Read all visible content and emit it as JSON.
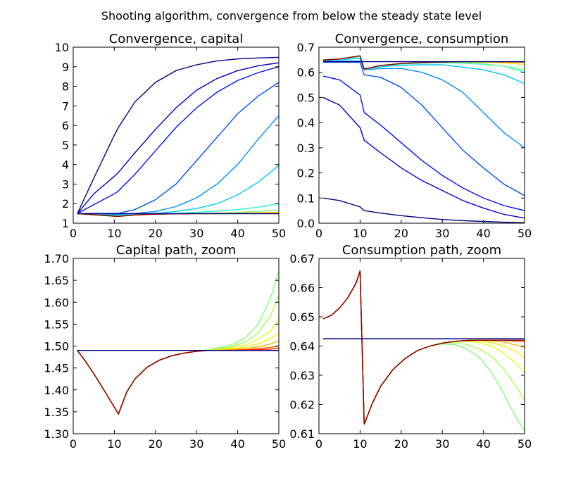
{
  "figure": {
    "suptitle": "Shooting algorithm, convergence from below the steady state level"
  },
  "chart_data": [
    {
      "id": "capital",
      "type": "line",
      "title": "Convergence, capital",
      "xlim": [
        0,
        50
      ],
      "ylim": [
        1,
        10
      ],
      "xticks": [
        0,
        10,
        20,
        30,
        40,
        50
      ],
      "yticks": [
        1,
        2,
        3,
        4,
        5,
        6,
        7,
        8,
        9,
        10
      ],
      "ytick_decimals": 0,
      "grid": false,
      "x": [
        1,
        5,
        10,
        11,
        15,
        20,
        25,
        30,
        35,
        40,
        45,
        50
      ],
      "series": [
        {
          "color": "#00007f",
          "values": [
            1.49,
            3.3,
            5.5,
            5.9,
            7.2,
            8.2,
            8.8,
            9.1,
            9.3,
            9.4,
            9.45,
            9.48
          ]
        },
        {
          "color": "#0000c8",
          "values": [
            1.49,
            2.5,
            3.4,
            3.6,
            4.6,
            5.8,
            6.9,
            7.8,
            8.4,
            8.8,
            9.05,
            9.2
          ]
        },
        {
          "color": "#0010ff",
          "values": [
            1.49,
            1.95,
            2.5,
            2.65,
            3.5,
            4.7,
            5.9,
            6.9,
            7.7,
            8.3,
            8.7,
            9.0
          ]
        },
        {
          "color": "#0050ff",
          "values": [
            1.49,
            1.5,
            1.5,
            1.5,
            1.7,
            2.2,
            3.0,
            4.2,
            5.4,
            6.6,
            7.5,
            8.2
          ]
        },
        {
          "color": "#0090ff",
          "values": [
            1.49,
            1.47,
            1.45,
            1.45,
            1.5,
            1.6,
            1.85,
            2.3,
            3.0,
            4.0,
            5.3,
            6.5
          ]
        },
        {
          "color": "#00c8ff",
          "values": [
            1.49,
            1.45,
            1.4,
            1.4,
            1.45,
            1.5,
            1.6,
            1.75,
            2.0,
            2.45,
            3.1,
            3.95
          ]
        },
        {
          "color": "#20ffd8",
          "values": [
            1.49,
            1.44,
            1.37,
            1.37,
            1.42,
            1.47,
            1.5,
            1.56,
            1.62,
            1.7,
            1.82,
            2.0
          ]
        },
        {
          "color": "#7dff7a",
          "values": [
            1.49,
            1.43,
            1.36,
            1.35,
            1.42,
            1.46,
            1.48,
            1.5,
            1.52,
            1.55,
            1.6,
            1.67
          ]
        },
        {
          "color": "#ffe600",
          "values": [
            1.49,
            1.43,
            1.36,
            1.35,
            1.42,
            1.46,
            1.48,
            1.49,
            1.5,
            1.51,
            1.53,
            1.55
          ]
        },
        {
          "color": "#ff6800",
          "values": [
            1.49,
            1.43,
            1.36,
            1.35,
            1.42,
            1.46,
            1.48,
            1.49,
            1.49,
            1.5,
            1.5,
            1.51
          ]
        },
        {
          "color": "#7f0000",
          "values": [
            1.49,
            1.43,
            1.36,
            1.35,
            1.42,
            1.46,
            1.48,
            1.49,
            1.49,
            1.49,
            1.49,
            1.49
          ]
        },
        {
          "color": "#00007f",
          "values": [
            1.49,
            1.49,
            1.49,
            1.49,
            1.49,
            1.49,
            1.49,
            1.49,
            1.49,
            1.49,
            1.49,
            1.49
          ]
        }
      ]
    },
    {
      "id": "consumption",
      "type": "line",
      "title": "Convergence, consumption",
      "xlim": [
        0,
        50
      ],
      "ylim": [
        0,
        0.7
      ],
      "xticks": [
        0,
        10,
        20,
        30,
        40,
        50
      ],
      "yticks": [
        0.0,
        0.1,
        0.2,
        0.3,
        0.4,
        0.5,
        0.6,
        0.7
      ],
      "ytick_decimals": 1,
      "grid": false,
      "x": [
        1,
        5,
        10,
        11,
        15,
        20,
        25,
        30,
        35,
        40,
        45,
        50
      ],
      "series": [
        {
          "color": "#00007f",
          "values": [
            0.1,
            0.09,
            0.065,
            0.05,
            0.04,
            0.03,
            0.022,
            0.015,
            0.01,
            0.007,
            0.004,
            0.002
          ]
        },
        {
          "color": "#0000c8",
          "values": [
            0.5,
            0.47,
            0.38,
            0.33,
            0.28,
            0.22,
            0.17,
            0.13,
            0.09,
            0.06,
            0.035,
            0.02
          ]
        },
        {
          "color": "#0010ff",
          "values": [
            0.585,
            0.57,
            0.51,
            0.44,
            0.39,
            0.32,
            0.25,
            0.19,
            0.14,
            0.1,
            0.07,
            0.05
          ]
        },
        {
          "color": "#0050ff",
          "values": [
            0.64,
            0.64,
            0.64,
            0.59,
            0.58,
            0.54,
            0.47,
            0.38,
            0.29,
            0.22,
            0.155,
            0.11
          ]
        },
        {
          "color": "#0090ff",
          "values": [
            0.645,
            0.645,
            0.645,
            0.61,
            0.615,
            0.615,
            0.6,
            0.57,
            0.52,
            0.44,
            0.36,
            0.3
          ]
        },
        {
          "color": "#00c8ff",
          "values": [
            0.648,
            0.65,
            0.655,
            0.612,
            0.622,
            0.628,
            0.63,
            0.63,
            0.62,
            0.61,
            0.59,
            0.555
          ]
        },
        {
          "color": "#20ffd8",
          "values": [
            0.649,
            0.652,
            0.662,
            0.613,
            0.625,
            0.633,
            0.637,
            0.638,
            0.636,
            0.632,
            0.625,
            0.6
          ]
        },
        {
          "color": "#7dff7a",
          "values": [
            0.649,
            0.653,
            0.665,
            0.613,
            0.627,
            0.635,
            0.639,
            0.64,
            0.638,
            0.634,
            0.625,
            0.61
          ]
        },
        {
          "color": "#ffe600",
          "values": [
            0.649,
            0.653,
            0.665,
            0.613,
            0.627,
            0.635,
            0.639,
            0.641,
            0.641,
            0.64,
            0.637,
            0.632
          ]
        },
        {
          "color": "#ff6800",
          "values": [
            0.649,
            0.653,
            0.665,
            0.613,
            0.627,
            0.635,
            0.639,
            0.641,
            0.642,
            0.642,
            0.641,
            0.64
          ]
        },
        {
          "color": "#7f0000",
          "values": [
            0.649,
            0.653,
            0.666,
            0.613,
            0.627,
            0.635,
            0.639,
            0.641,
            0.642,
            0.642,
            0.642,
            0.642
          ]
        },
        {
          "color": "#00007f",
          "values": [
            0.6425,
            0.6425,
            0.6425,
            0.6425,
            0.6425,
            0.6425,
            0.6425,
            0.6425,
            0.6425,
            0.6425,
            0.6425,
            0.6425
          ]
        }
      ]
    },
    {
      "id": "capital-zoom",
      "type": "line",
      "title": "Capital path, zoom",
      "xlim": [
        0,
        50
      ],
      "ylim": [
        1.3,
        1.7
      ],
      "xticks": [
        0,
        10,
        20,
        30,
        40,
        50
      ],
      "yticks": [
        1.3,
        1.35,
        1.4,
        1.45,
        1.5,
        1.55,
        1.6,
        1.65,
        1.7
      ],
      "ytick_decimals": 2,
      "grid": false,
      "x": [
        1,
        3,
        5,
        7,
        9,
        11,
        13,
        15,
        18,
        21,
        24,
        27,
        30,
        33,
        36,
        39,
        42,
        45,
        48,
        50
      ],
      "series": [
        {
          "color": "#7dff7a",
          "values": [
            1.49,
            1.465,
            1.437,
            1.407,
            1.376,
            1.345,
            1.395,
            1.425,
            1.452,
            1.468,
            1.478,
            1.484,
            1.488,
            1.492,
            1.497,
            1.505,
            1.52,
            1.55,
            1.61,
            1.67
          ]
        },
        {
          "color": "#a6ff51",
          "values": [
            1.49,
            1.465,
            1.437,
            1.407,
            1.376,
            1.345,
            1.395,
            1.425,
            1.452,
            1.468,
            1.478,
            1.484,
            1.488,
            1.491,
            1.495,
            1.5,
            1.51,
            1.53,
            1.57,
            1.615
          ]
        },
        {
          "color": "#d8ff20",
          "values": [
            1.49,
            1.465,
            1.437,
            1.407,
            1.376,
            1.345,
            1.395,
            1.425,
            1.452,
            1.468,
            1.478,
            1.484,
            1.488,
            1.49,
            1.493,
            1.497,
            1.503,
            1.515,
            1.535,
            1.56
          ]
        },
        {
          "color": "#ffe600",
          "values": [
            1.49,
            1.465,
            1.437,
            1.407,
            1.376,
            1.345,
            1.395,
            1.425,
            1.452,
            1.468,
            1.478,
            1.484,
            1.488,
            1.49,
            1.492,
            1.494,
            1.498,
            1.505,
            1.518,
            1.53
          ]
        },
        {
          "color": "#ffb000",
          "values": [
            1.49,
            1.465,
            1.437,
            1.407,
            1.376,
            1.345,
            1.395,
            1.425,
            1.452,
            1.468,
            1.478,
            1.484,
            1.488,
            1.49,
            1.491,
            1.492,
            1.494,
            1.498,
            1.505,
            1.512
          ]
        },
        {
          "color": "#ff6800",
          "values": [
            1.49,
            1.465,
            1.437,
            1.407,
            1.376,
            1.345,
            1.395,
            1.425,
            1.452,
            1.468,
            1.478,
            1.484,
            1.488,
            1.49,
            1.49,
            1.491,
            1.492,
            1.494,
            1.497,
            1.5
          ]
        },
        {
          "color": "#ff1a00",
          "values": [
            1.49,
            1.465,
            1.437,
            1.407,
            1.376,
            1.345,
            1.395,
            1.425,
            1.452,
            1.468,
            1.478,
            1.484,
            1.488,
            1.49,
            1.49,
            1.49,
            1.491,
            1.492,
            1.493,
            1.495
          ]
        },
        {
          "color": "#7f0000",
          "values": [
            1.49,
            1.465,
            1.437,
            1.407,
            1.376,
            1.345,
            1.395,
            1.425,
            1.452,
            1.468,
            1.478,
            1.484,
            1.488,
            1.49,
            1.49,
            1.49,
            1.49,
            1.49,
            1.49,
            1.49
          ]
        },
        {
          "color": "#00007f",
          "values": [
            1.49,
            1.49,
            1.49,
            1.49,
            1.49,
            1.49,
            1.49,
            1.49,
            1.49,
            1.49,
            1.49,
            1.49,
            1.49,
            1.49,
            1.49,
            1.49,
            1.49,
            1.49,
            1.49,
            1.49
          ]
        }
      ]
    },
    {
      "id": "consumption-zoom",
      "type": "line",
      "title": "Consumption path, zoom",
      "xlim": [
        0,
        50
      ],
      "ylim": [
        0.61,
        0.67
      ],
      "xticks": [
        0,
        10,
        20,
        30,
        40,
        50
      ],
      "yticks": [
        0.61,
        0.62,
        0.63,
        0.64,
        0.65,
        0.66,
        0.67
      ],
      "ytick_decimals": 2,
      "grid": false,
      "x": [
        1,
        3,
        5,
        7,
        9,
        10,
        11,
        13,
        15,
        18,
        21,
        24,
        27,
        30,
        33,
        36,
        39,
        42,
        45,
        48,
        50
      ],
      "series": [
        {
          "color": "#7dff7a",
          "values": [
            0.6493,
            0.6505,
            0.653,
            0.6565,
            0.6615,
            0.6655,
            0.6132,
            0.6205,
            0.6262,
            0.632,
            0.6358,
            0.6385,
            0.64,
            0.6407,
            0.6405,
            0.639,
            0.636,
            0.631,
            0.6235,
            0.6155,
            0.611
          ]
        },
        {
          "color": "#a6ff51",
          "values": [
            0.6493,
            0.6505,
            0.653,
            0.6565,
            0.6615,
            0.6655,
            0.6132,
            0.6205,
            0.6262,
            0.632,
            0.6358,
            0.6385,
            0.64,
            0.641,
            0.6412,
            0.6405,
            0.639,
            0.6365,
            0.632,
            0.626,
            0.6215
          ]
        },
        {
          "color": "#d8ff20",
          "values": [
            0.6493,
            0.6505,
            0.653,
            0.6565,
            0.6615,
            0.6655,
            0.6132,
            0.6205,
            0.6262,
            0.632,
            0.6358,
            0.6385,
            0.64,
            0.641,
            0.6415,
            0.6416,
            0.6412,
            0.64,
            0.6375,
            0.634,
            0.631
          ]
        },
        {
          "color": "#ffe600",
          "values": [
            0.6493,
            0.6505,
            0.653,
            0.6565,
            0.6615,
            0.6655,
            0.6132,
            0.6205,
            0.6262,
            0.632,
            0.6358,
            0.6385,
            0.64,
            0.641,
            0.6416,
            0.6418,
            0.6418,
            0.6412,
            0.64,
            0.638,
            0.636
          ]
        },
        {
          "color": "#ffb000",
          "values": [
            0.6493,
            0.6505,
            0.653,
            0.6565,
            0.6615,
            0.6655,
            0.6132,
            0.6205,
            0.6262,
            0.632,
            0.6358,
            0.6385,
            0.64,
            0.641,
            0.6416,
            0.6419,
            0.642,
            0.6418,
            0.6413,
            0.6403,
            0.6395
          ]
        },
        {
          "color": "#ff6800",
          "values": [
            0.6493,
            0.6505,
            0.653,
            0.6565,
            0.6615,
            0.6655,
            0.6132,
            0.6205,
            0.6262,
            0.632,
            0.6358,
            0.6385,
            0.64,
            0.641,
            0.6416,
            0.6419,
            0.642,
            0.642,
            0.6419,
            0.6416,
            0.6414
          ]
        },
        {
          "color": "#ff1a00",
          "values": [
            0.6493,
            0.6505,
            0.653,
            0.6565,
            0.6615,
            0.6655,
            0.6132,
            0.6205,
            0.6262,
            0.632,
            0.6358,
            0.6385,
            0.64,
            0.641,
            0.6416,
            0.6419,
            0.642,
            0.642,
            0.642,
            0.642,
            0.642
          ]
        },
        {
          "color": "#7f0000",
          "values": [
            0.6493,
            0.6505,
            0.653,
            0.6565,
            0.6615,
            0.6658,
            0.6132,
            0.6205,
            0.6262,
            0.632,
            0.6358,
            0.6385,
            0.64,
            0.641,
            0.6416,
            0.6419,
            0.642,
            0.642,
            0.642,
            0.642,
            0.642
          ]
        },
        {
          "color": "#00007f",
          "values": [
            0.6425,
            0.6425,
            0.6425,
            0.6425,
            0.6425,
            0.6425,
            0.6425,
            0.6425,
            0.6425,
            0.6425,
            0.6425,
            0.6425,
            0.6425,
            0.6425,
            0.6425,
            0.6425,
            0.6425,
            0.6425,
            0.6425,
            0.6425,
            0.6425
          ]
        }
      ]
    }
  ]
}
